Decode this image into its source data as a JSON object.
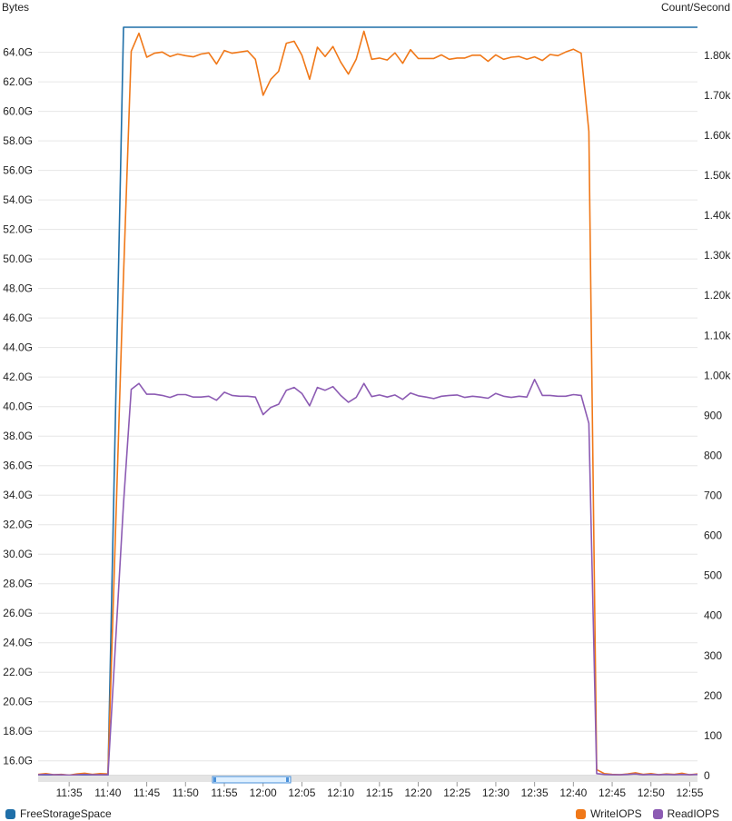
{
  "chart_data": {
    "type": "line",
    "left_axis": {
      "label": "Bytes",
      "range": [
        15000000000,
        65700000000
      ],
      "ticks": [
        16000000000,
        18000000000,
        20000000000,
        22000000000,
        24000000000,
        26000000000,
        28000000000,
        30000000000,
        32000000000,
        34000000000,
        36000000000,
        38000000000,
        40000000000,
        42000000000,
        44000000000,
        46000000000,
        48000000000,
        50000000000,
        52000000000,
        54000000000,
        56000000000,
        58000000000,
        60000000000,
        62000000000,
        64000000000
      ],
      "tick_labels": [
        "16.0G",
        "18.0G",
        "20.0G",
        "22.0G",
        "24.0G",
        "26.0G",
        "28.0G",
        "30.0G",
        "32.0G",
        "34.0G",
        "36.0G",
        "38.0G",
        "40.0G",
        "42.0G",
        "44.0G",
        "46.0G",
        "48.0G",
        "50.0G",
        "52.0G",
        "54.0G",
        "56.0G",
        "58.0G",
        "60.0G",
        "62.0G",
        "64.0G"
      ]
    },
    "right_axis": {
      "label": "Count/Second",
      "range": [
        0,
        1870
      ],
      "ticks": [
        0,
        100,
        200,
        300,
        400,
        500,
        600,
        700,
        800,
        900,
        1000,
        1100,
        1200,
        1300,
        1400,
        1500,
        1600,
        1700,
        1800
      ],
      "tick_labels": [
        "0",
        "100",
        "200",
        "300",
        "400",
        "500",
        "600",
        "700",
        "800",
        "900",
        "1.00k",
        "1.10k",
        "1.20k",
        "1.30k",
        "1.40k",
        "1.50k",
        "1.60k",
        "1.70k",
        "1.80k"
      ]
    },
    "x_axis": {
      "range": [
        "11:31",
        "12:56"
      ],
      "ticks": [
        "11:35",
        "11:40",
        "11:45",
        "11:50",
        "11:55",
        "12:00",
        "12:05",
        "12:10",
        "12:15",
        "12:20",
        "12:25",
        "12:30",
        "12:35",
        "12:40",
        "12:45",
        "12:50",
        "12:55"
      ]
    },
    "grid": true,
    "series": [
      {
        "name": "FreeStorageSpace",
        "axis": "left",
        "color": "#1f6fa8",
        "points": [
          [
            "11:31",
            15000000000
          ],
          [
            "11:40",
            15000000000
          ],
          [
            "11:42",
            65700000000
          ],
          [
            "12:56",
            65700000000
          ]
        ]
      },
      {
        "name": "WriteIOPS",
        "axis": "right",
        "color": "#f07818",
        "points": [
          [
            "11:31",
            3
          ],
          [
            "11:32",
            5
          ],
          [
            "11:33",
            2
          ],
          [
            "11:34",
            3
          ],
          [
            "11:35",
            1
          ],
          [
            "11:36",
            4
          ],
          [
            "11:37",
            6
          ],
          [
            "11:38",
            3
          ],
          [
            "11:39",
            5
          ],
          [
            "11:40",
            4
          ],
          [
            "11:42",
            1250
          ],
          [
            "11:43",
            1810
          ],
          [
            "11:44",
            1855
          ],
          [
            "11:45",
            1795
          ],
          [
            "11:46",
            1805
          ],
          [
            "11:47",
            1808
          ],
          [
            "11:48",
            1797
          ],
          [
            "11:49",
            1803
          ],
          [
            "11:50",
            1799
          ],
          [
            "11:51",
            1796
          ],
          [
            "11:52",
            1803
          ],
          [
            "11:53",
            1806
          ],
          [
            "11:54",
            1778
          ],
          [
            "11:55",
            1812
          ],
          [
            "11:56",
            1805
          ],
          [
            "11:57",
            1808
          ],
          [
            "11:58",
            1811
          ],
          [
            "11:59",
            1790
          ],
          [
            "12:00",
            1700
          ],
          [
            "12:01",
            1740
          ],
          [
            "12:02",
            1760
          ],
          [
            "12:03",
            1830
          ],
          [
            "12:04",
            1835
          ],
          [
            "12:05",
            1800
          ],
          [
            "12:06",
            1740
          ],
          [
            "12:07",
            1820
          ],
          [
            "12:08",
            1797
          ],
          [
            "12:09",
            1822
          ],
          [
            "12:10",
            1783
          ],
          [
            "12:11",
            1753
          ],
          [
            "12:12",
            1790
          ],
          [
            "12:13",
            1860
          ],
          [
            "12:14",
            1790
          ],
          [
            "12:15",
            1793
          ],
          [
            "12:16",
            1788
          ],
          [
            "12:17",
            1806
          ],
          [
            "12:18",
            1780
          ],
          [
            "12:19",
            1814
          ],
          [
            "12:20",
            1792
          ],
          [
            "12:21",
            1792
          ],
          [
            "12:22",
            1792
          ],
          [
            "12:23",
            1801
          ],
          [
            "12:24",
            1790
          ],
          [
            "12:25",
            1793
          ],
          [
            "12:26",
            1793
          ],
          [
            "12:27",
            1800
          ],
          [
            "12:28",
            1800
          ],
          [
            "12:29",
            1785
          ],
          [
            "12:30",
            1801
          ],
          [
            "12:31",
            1790
          ],
          [
            "12:32",
            1795
          ],
          [
            "12:33",
            1797
          ],
          [
            "12:34",
            1790
          ],
          [
            "12:35",
            1796
          ],
          [
            "12:36",
            1787
          ],
          [
            "12:37",
            1802
          ],
          [
            "12:38",
            1799
          ],
          [
            "12:39",
            1808
          ],
          [
            "12:40",
            1815
          ],
          [
            "12:41",
            1805
          ],
          [
            "12:42",
            1610
          ],
          [
            "12:43",
            15
          ],
          [
            "12:44",
            5
          ],
          [
            "12:45",
            3
          ],
          [
            "12:46",
            2
          ],
          [
            "12:47",
            4
          ],
          [
            "12:48",
            7
          ],
          [
            "12:49",
            3
          ],
          [
            "12:50",
            5
          ],
          [
            "12:51",
            2
          ],
          [
            "12:52",
            4
          ],
          [
            "12:53",
            3
          ],
          [
            "12:54",
            6
          ],
          [
            "12:55",
            2
          ],
          [
            "12:56",
            4
          ]
        ]
      },
      {
        "name": "ReadIOPS",
        "axis": "right",
        "color": "#8c5bb3",
        "points": [
          [
            "11:31",
            2
          ],
          [
            "11:32",
            3
          ],
          [
            "11:33",
            2
          ],
          [
            "11:34",
            2
          ],
          [
            "11:35",
            1
          ],
          [
            "11:36",
            2
          ],
          [
            "11:37",
            3
          ],
          [
            "11:38",
            2
          ],
          [
            "11:39",
            2
          ],
          [
            "11:40",
            2
          ],
          [
            "11:42",
            680
          ],
          [
            "11:43",
            965
          ],
          [
            "11:44",
            980
          ],
          [
            "11:45",
            953
          ],
          [
            "11:46",
            953
          ],
          [
            "11:47",
            950
          ],
          [
            "11:48",
            945
          ],
          [
            "11:49",
            952
          ],
          [
            "11:50",
            952
          ],
          [
            "11:51",
            946
          ],
          [
            "11:52",
            946
          ],
          [
            "11:53",
            948
          ],
          [
            "11:54",
            938
          ],
          [
            "11:55",
            958
          ],
          [
            "11:56",
            950
          ],
          [
            "11:57",
            948
          ],
          [
            "11:58",
            948
          ],
          [
            "11:59",
            946
          ],
          [
            "12:00",
            902
          ],
          [
            "12:01",
            920
          ],
          [
            "12:02",
            928
          ],
          [
            "12:03",
            963
          ],
          [
            "12:04",
            970
          ],
          [
            "12:05",
            955
          ],
          [
            "12:06",
            924
          ],
          [
            "12:07",
            970
          ],
          [
            "12:08",
            963
          ],
          [
            "12:09",
            972
          ],
          [
            "12:10",
            950
          ],
          [
            "12:11",
            933
          ],
          [
            "12:12",
            945
          ],
          [
            "12:13",
            980
          ],
          [
            "12:14",
            947
          ],
          [
            "12:15",
            951
          ],
          [
            "12:16",
            946
          ],
          [
            "12:17",
            951
          ],
          [
            "12:18",
            940
          ],
          [
            "12:19",
            956
          ],
          [
            "12:20",
            949
          ],
          [
            "12:21",
            946
          ],
          [
            "12:22",
            942
          ],
          [
            "12:23",
            948
          ],
          [
            "12:24",
            950
          ],
          [
            "12:25",
            951
          ],
          [
            "12:26",
            945
          ],
          [
            "12:27",
            948
          ],
          [
            "12:28",
            946
          ],
          [
            "12:29",
            943
          ],
          [
            "12:30",
            955
          ],
          [
            "12:31",
            948
          ],
          [
            "12:32",
            945
          ],
          [
            "12:33",
            948
          ],
          [
            "12:34",
            946
          ],
          [
            "12:35",
            990
          ],
          [
            "12:36",
            950
          ],
          [
            "12:37",
            950
          ],
          [
            "12:38",
            948
          ],
          [
            "12:39",
            948
          ],
          [
            "12:40",
            952
          ],
          [
            "12:41",
            950
          ],
          [
            "12:42",
            880
          ],
          [
            "12:43",
            5
          ],
          [
            "12:44",
            3
          ],
          [
            "12:45",
            2
          ],
          [
            "12:46",
            2
          ],
          [
            "12:47",
            3
          ],
          [
            "12:48",
            4
          ],
          [
            "12:49",
            2
          ],
          [
            "12:50",
            3
          ],
          [
            "12:51",
            2
          ],
          [
            "12:52",
            3
          ],
          [
            "12:53",
            2
          ],
          [
            "12:54",
            3
          ],
          [
            "12:55",
            2
          ],
          [
            "12:56",
            3
          ]
        ]
      }
    ],
    "legend": {
      "left": [
        {
          "name": "FreeStorageSpace",
          "color": "#1f6fa8"
        }
      ],
      "right": [
        {
          "name": "WriteIOPS",
          "color": "#f07818"
        },
        {
          "name": "ReadIOPS",
          "color": "#8c5bb3"
        }
      ]
    }
  }
}
